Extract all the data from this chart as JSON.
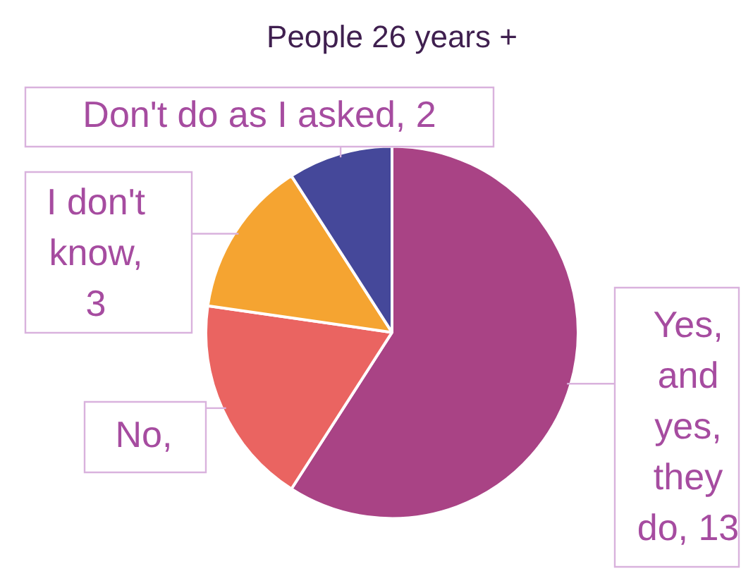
{
  "chart_data": {
    "type": "pie",
    "title": "People 26 years +",
    "categories": [
      "Yes, and yes, they do",
      "No",
      "I don't know",
      "Don't do as I asked"
    ],
    "values": [
      13,
      4,
      3,
      2
    ],
    "value_labels": [
      ", 13",
      ",",
      ", 3",
      ", 2"
    ],
    "colors": [
      "#a94385",
      "#ea6461",
      "#f5a431",
      "#45489a"
    ],
    "legend": false
  }
}
